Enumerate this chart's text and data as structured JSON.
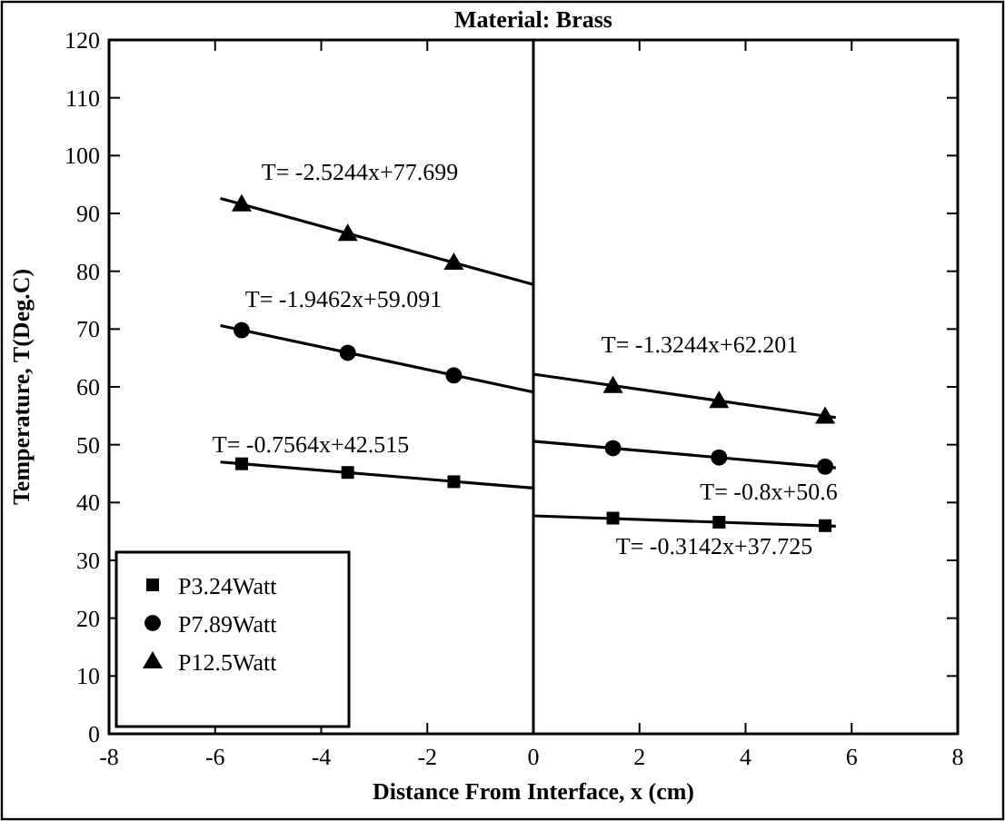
{
  "chart_data": {
    "type": "scatter",
    "title": "Material: Brass",
    "xlabel": "Distance From Interface, x (cm)",
    "ylabel": "Temperature, T(Deg.C)",
    "xlim": [
      -8,
      8
    ],
    "xticks": [
      -8,
      -6,
      -4,
      -2,
      0,
      2,
      4,
      6,
      8
    ],
    "ylim": [
      0,
      120
    ],
    "yticks": [
      0,
      10,
      20,
      30,
      40,
      50,
      60,
      70,
      80,
      90,
      100,
      110,
      120
    ],
    "grid": false,
    "legend": "bottom left",
    "x": [
      -5.5,
      -3.5,
      -1.5,
      1.5,
      3.5,
      5.5
    ],
    "series": [
      {
        "name": "P3.24Watt",
        "color": "#000000",
        "marker": "square",
        "values": [
          46.7,
          45.2,
          43.6,
          37.3,
          36.6,
          36.0
        ]
      },
      {
        "name": "P7.89Watt",
        "color": "#000000",
        "marker": "circle",
        "values": [
          69.8,
          65.9,
          62.0,
          49.4,
          47.8,
          46.2
        ]
      },
      {
        "name": "P12.5Watt",
        "color": "#000000",
        "marker": "triangle",
        "values": [
          91.6,
          86.5,
          81.5,
          60.2,
          57.6,
          54.9
        ]
      },
      {
        "type": "line",
        "color": "#000000",
        "marker": "none",
        "x": [
          -5.9,
          0
        ],
        "values": [
          47.0,
          42.5
        ]
      },
      {
        "type": "line",
        "color": "#000000",
        "marker": "none",
        "x": [
          -5.9,
          0
        ],
        "values": [
          70.6,
          59.1
        ]
      },
      {
        "type": "line",
        "color": "#000000",
        "marker": "none",
        "x": [
          -5.9,
          0
        ],
        "values": [
          92.6,
          77.7
        ]
      },
      {
        "type": "line",
        "color": "#000000",
        "marker": "none",
        "x": [
          0,
          5.7
        ],
        "values": [
          37.7,
          35.9
        ]
      },
      {
        "type": "line",
        "color": "#000000",
        "marker": "none",
        "x": [
          0,
          5.7
        ],
        "values": [
          50.6,
          46.0
        ]
      },
      {
        "type": "line",
        "color": "#000000",
        "marker": "none",
        "x": [
          0,
          5.7
        ],
        "values": [
          62.2,
          54.7
        ]
      }
    ],
    "ref_lines": [
      {
        "axis": "x",
        "value": 0,
        "color": "#000000"
      }
    ],
    "annotations": [
      "T= -2.5244x+77.699",
      "T= -1.9462x+59.091",
      "T= -0.7564x+42.515",
      "T= -1.3244x+62.201",
      "T= -0.8x+50.6",
      "T= -0.3142x+37.725"
    ]
  }
}
